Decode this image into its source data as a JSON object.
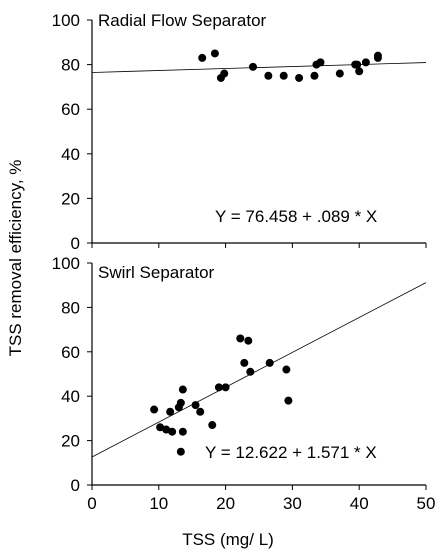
{
  "chart_data": [
    {
      "type": "scatter",
      "title": "Radial Flow Separator",
      "equation": "Y = 76.458 + .089 * X",
      "xlim": [
        0,
        50
      ],
      "ylim": [
        0,
        100
      ],
      "yticks": [
        "0",
        "20",
        "40",
        "60",
        "80",
        "100"
      ],
      "xticks": [],
      "fit": {
        "intercept": 76.458,
        "slope": 0.089
      },
      "points": [
        {
          "x": 16.5,
          "y": 83
        },
        {
          "x": 18.4,
          "y": 85
        },
        {
          "x": 19.3,
          "y": 74
        },
        {
          "x": 19.8,
          "y": 76
        },
        {
          "x": 24.1,
          "y": 79
        },
        {
          "x": 26.4,
          "y": 75
        },
        {
          "x": 28.7,
          "y": 75
        },
        {
          "x": 31.0,
          "y": 74
        },
        {
          "x": 33.3,
          "y": 75
        },
        {
          "x": 33.6,
          "y": 80
        },
        {
          "x": 34.2,
          "y": 81
        },
        {
          "x": 37.1,
          "y": 76
        },
        {
          "x": 39.4,
          "y": 80
        },
        {
          "x": 39.7,
          "y": 80
        },
        {
          "x": 40.0,
          "y": 77
        },
        {
          "x": 41.0,
          "y": 81
        },
        {
          "x": 42.8,
          "y": 83
        },
        {
          "x": 42.8,
          "y": 84
        }
      ]
    },
    {
      "type": "scatter",
      "title": "Swirl Separator",
      "equation": "Y = 12.622 + 1.571 * X",
      "xlabel": "TSS  (mg/ L)",
      "xlim": [
        0,
        50
      ],
      "ylim": [
        0,
        100
      ],
      "yticks": [
        "0",
        "20",
        "40",
        "60",
        "80",
        "100"
      ],
      "xticks": [
        "0",
        "10",
        "20",
        "30",
        "40",
        "50"
      ],
      "fit": {
        "intercept": 12.622,
        "slope": 1.571
      },
      "points": [
        {
          "x": 9.3,
          "y": 34
        },
        {
          "x": 10.2,
          "y": 26
        },
        {
          "x": 11.1,
          "y": 25
        },
        {
          "x": 11.7,
          "y": 33
        },
        {
          "x": 12.0,
          "y": 24
        },
        {
          "x": 13.0,
          "y": 35
        },
        {
          "x": 13.3,
          "y": 37
        },
        {
          "x": 13.3,
          "y": 15
        },
        {
          "x": 13.6,
          "y": 43
        },
        {
          "x": 13.6,
          "y": 24
        },
        {
          "x": 15.5,
          "y": 36
        },
        {
          "x": 16.2,
          "y": 33
        },
        {
          "x": 18.0,
          "y": 27
        },
        {
          "x": 19.0,
          "y": 44
        },
        {
          "x": 20.0,
          "y": 44
        },
        {
          "x": 22.2,
          "y": 66
        },
        {
          "x": 22.8,
          "y": 55
        },
        {
          "x": 23.4,
          "y": 65
        },
        {
          "x": 23.7,
          "y": 51
        },
        {
          "x": 26.6,
          "y": 55
        },
        {
          "x": 29.1,
          "y": 52
        },
        {
          "x": 29.4,
          "y": 38
        }
      ]
    }
  ],
  "shared": {
    "ylabel": "TSS removal efficiency, %"
  }
}
